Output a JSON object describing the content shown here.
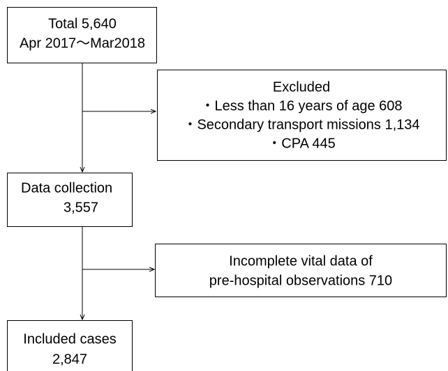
{
  "nodes": [
    {
      "lines": [
        "Total 5,640",
        "Apr 2017～Mar2018"
      ]
    },
    {
      "lines": [
        "Excluded",
        "・Less than 16 years of age 608",
        "・Secondary transport missions 1,134",
        "・CPA 445"
      ]
    },
    {
      "lines": [
        "Data collection",
        "3,557"
      ]
    },
    {
      "lines": [
        "Incomplete vital data of",
        "pre-hospital observations 710"
      ]
    },
    {
      "lines": [
        "Included cases",
        "2,847"
      ]
    }
  ]
}
